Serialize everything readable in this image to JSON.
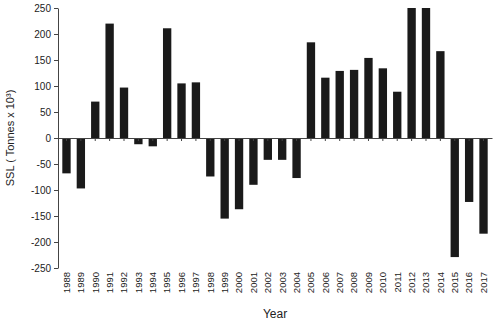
{
  "chart_data": {
    "type": "bar",
    "x_label": "Year",
    "y_label": "SSL ( Tonnes x 10³)",
    "categories": [
      "1988",
      "1989",
      "1990",
      "1991",
      "1992",
      "1993",
      "1994",
      "1995",
      "1996",
      "1997",
      "1998",
      "1999",
      "2000",
      "2001",
      "2002",
      "2003",
      "2004",
      "2005",
      "2006",
      "2007",
      "2008",
      "2009",
      "2010",
      "2011",
      "2012",
      "2013",
      "2014",
      "2015",
      "2016",
      "2017"
    ],
    "values": [
      -68,
      -97,
      70,
      220,
      97,
      -12,
      -16,
      211,
      105,
      107,
      -74,
      -155,
      -137,
      -90,
      -42,
      -42,
      -77,
      184,
      116,
      129,
      131,
      154,
      134,
      89,
      250,
      250,
      167,
      -229,
      -123,
      -184
    ],
    "color": "#1a1a1a",
    "ylim": [
      -250,
      250
    ],
    "yticks": [
      -250,
      -200,
      -150,
      -100,
      -50,
      0,
      50,
      100,
      150,
      200,
      250
    ],
    "grid": false
  }
}
